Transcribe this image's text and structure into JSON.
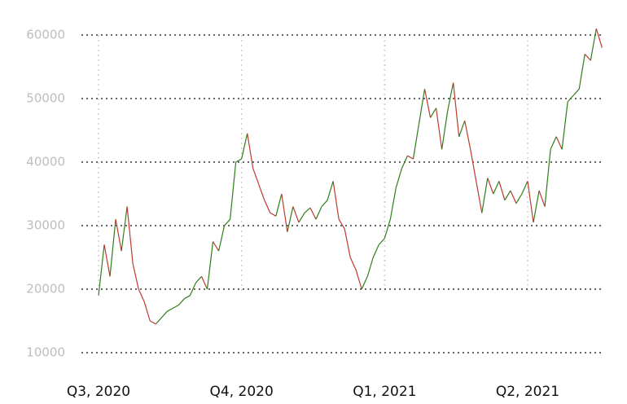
{
  "chart_data": {
    "type": "line",
    "categories": [
      "Q3, 2020",
      null,
      null,
      null,
      null,
      null,
      null,
      null,
      null,
      null,
      null,
      null,
      null,
      null,
      null,
      null,
      null,
      null,
      null,
      null,
      null,
      null,
      null,
      null,
      null,
      "Q4, 2020",
      null,
      null,
      null,
      null,
      null,
      null,
      null,
      null,
      null,
      null,
      null,
      null,
      null,
      null,
      null,
      null,
      null,
      null,
      null,
      null,
      null,
      null,
      null,
      null,
      "Q1, 2021",
      null,
      null,
      null,
      null,
      null,
      null,
      null,
      null,
      null,
      null,
      null,
      null,
      null,
      null,
      null,
      null,
      null,
      null,
      null,
      null,
      null,
      null,
      null,
      null,
      "Q2, 2021",
      null,
      null,
      null,
      null,
      null,
      null,
      null,
      null,
      null,
      null,
      null,
      null,
      null
    ],
    "values": [
      19000,
      27000,
      22000,
      31000,
      26000,
      33000,
      24000,
      20000,
      18000,
      15000,
      14500,
      15500,
      16500,
      17000,
      17500,
      18500,
      19000,
      21000,
      22000,
      20000,
      27500,
      26000,
      30000,
      31000,
      40000,
      40500,
      44500,
      39000,
      36500,
      34000,
      32000,
      31500,
      35000,
      29000,
      33000,
      30500,
      32000,
      32800,
      31000,
      33000,
      34000,
      37000,
      31000,
      29500,
      25000,
      23000,
      20000,
      22000,
      25000,
      27000,
      28000,
      31000,
      36000,
      39000,
      41000,
      40500,
      46000,
      51500,
      47000,
      48500,
      42000,
      48000,
      52500,
      44000,
      46500,
      42000,
      37000,
      32000,
      37500,
      35000,
      37000,
      34000,
      35500,
      33500,
      35000,
      37000,
      30500,
      35500,
      33000,
      42000,
      44000,
      42000,
      49500,
      50500,
      51500,
      57000,
      56000,
      61000,
      58000
    ],
    "up_color": "#2f7d1a",
    "down_color": "#c0392b",
    "ylim": [
      8000,
      63000
    ],
    "yticks": [
      10000,
      20000,
      30000,
      40000,
      50000,
      60000
    ],
    "grid": true
  }
}
